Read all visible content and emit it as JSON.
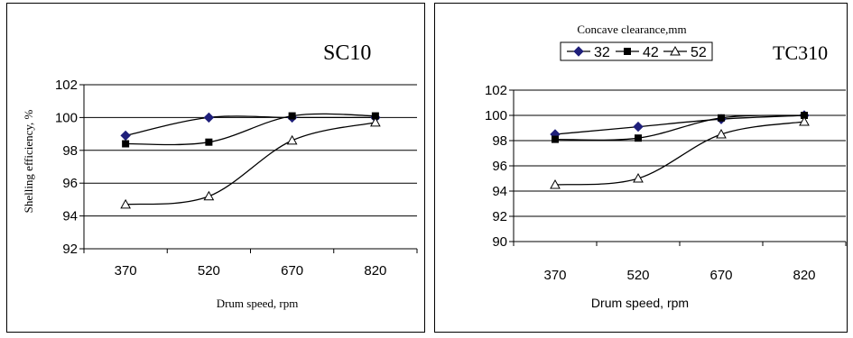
{
  "chart_data": [
    {
      "type": "line",
      "title": "SC10",
      "ylabel": "Shelling efficiency, %",
      "xlabel": "Drum speed, rpm",
      "categories": [
        "370",
        "520",
        "670",
        "820"
      ],
      "ylim": [
        92,
        102
      ],
      "yticks": [
        "92",
        "94",
        "96",
        "98",
        "100",
        "102"
      ],
      "grid": true,
      "legend": "none",
      "series": [
        {
          "values": [
            98.9,
            100.0,
            100.0,
            100.0
          ],
          "marker": "diamond",
          "color": "#1f1f7a"
        },
        {
          "values": [
            98.4,
            98.5,
            100.1,
            100.1
          ],
          "marker": "square",
          "color": "#000000"
        },
        {
          "values": [
            94.7,
            95.2,
            98.6,
            99.7
          ],
          "marker": "triangle",
          "color": "#000000"
        }
      ]
    },
    {
      "type": "line",
      "title": "TC310",
      "ylabel": "",
      "xlabel": "Drum speed, rpm",
      "categories": [
        "370",
        "520",
        "670",
        "820"
      ],
      "ylim": [
        90,
        102
      ],
      "yticks": [
        "90",
        "92",
        "94",
        "96",
        "98",
        "100",
        "102"
      ],
      "grid": true,
      "legend": "top-center",
      "legend_title": "Concave clearance,mm",
      "series": [
        {
          "name": "32",
          "values": [
            98.5,
            99.1,
            99.7,
            100.0
          ],
          "marker": "diamond",
          "color": "#1f1f7a"
        },
        {
          "name": "42",
          "values": [
            98.1,
            98.2,
            99.8,
            100.0
          ],
          "marker": "square",
          "color": "#000000"
        },
        {
          "name": "52",
          "values": [
            94.5,
            95.0,
            98.5,
            99.5
          ],
          "marker": "triangle",
          "color": "#000000"
        }
      ]
    }
  ]
}
